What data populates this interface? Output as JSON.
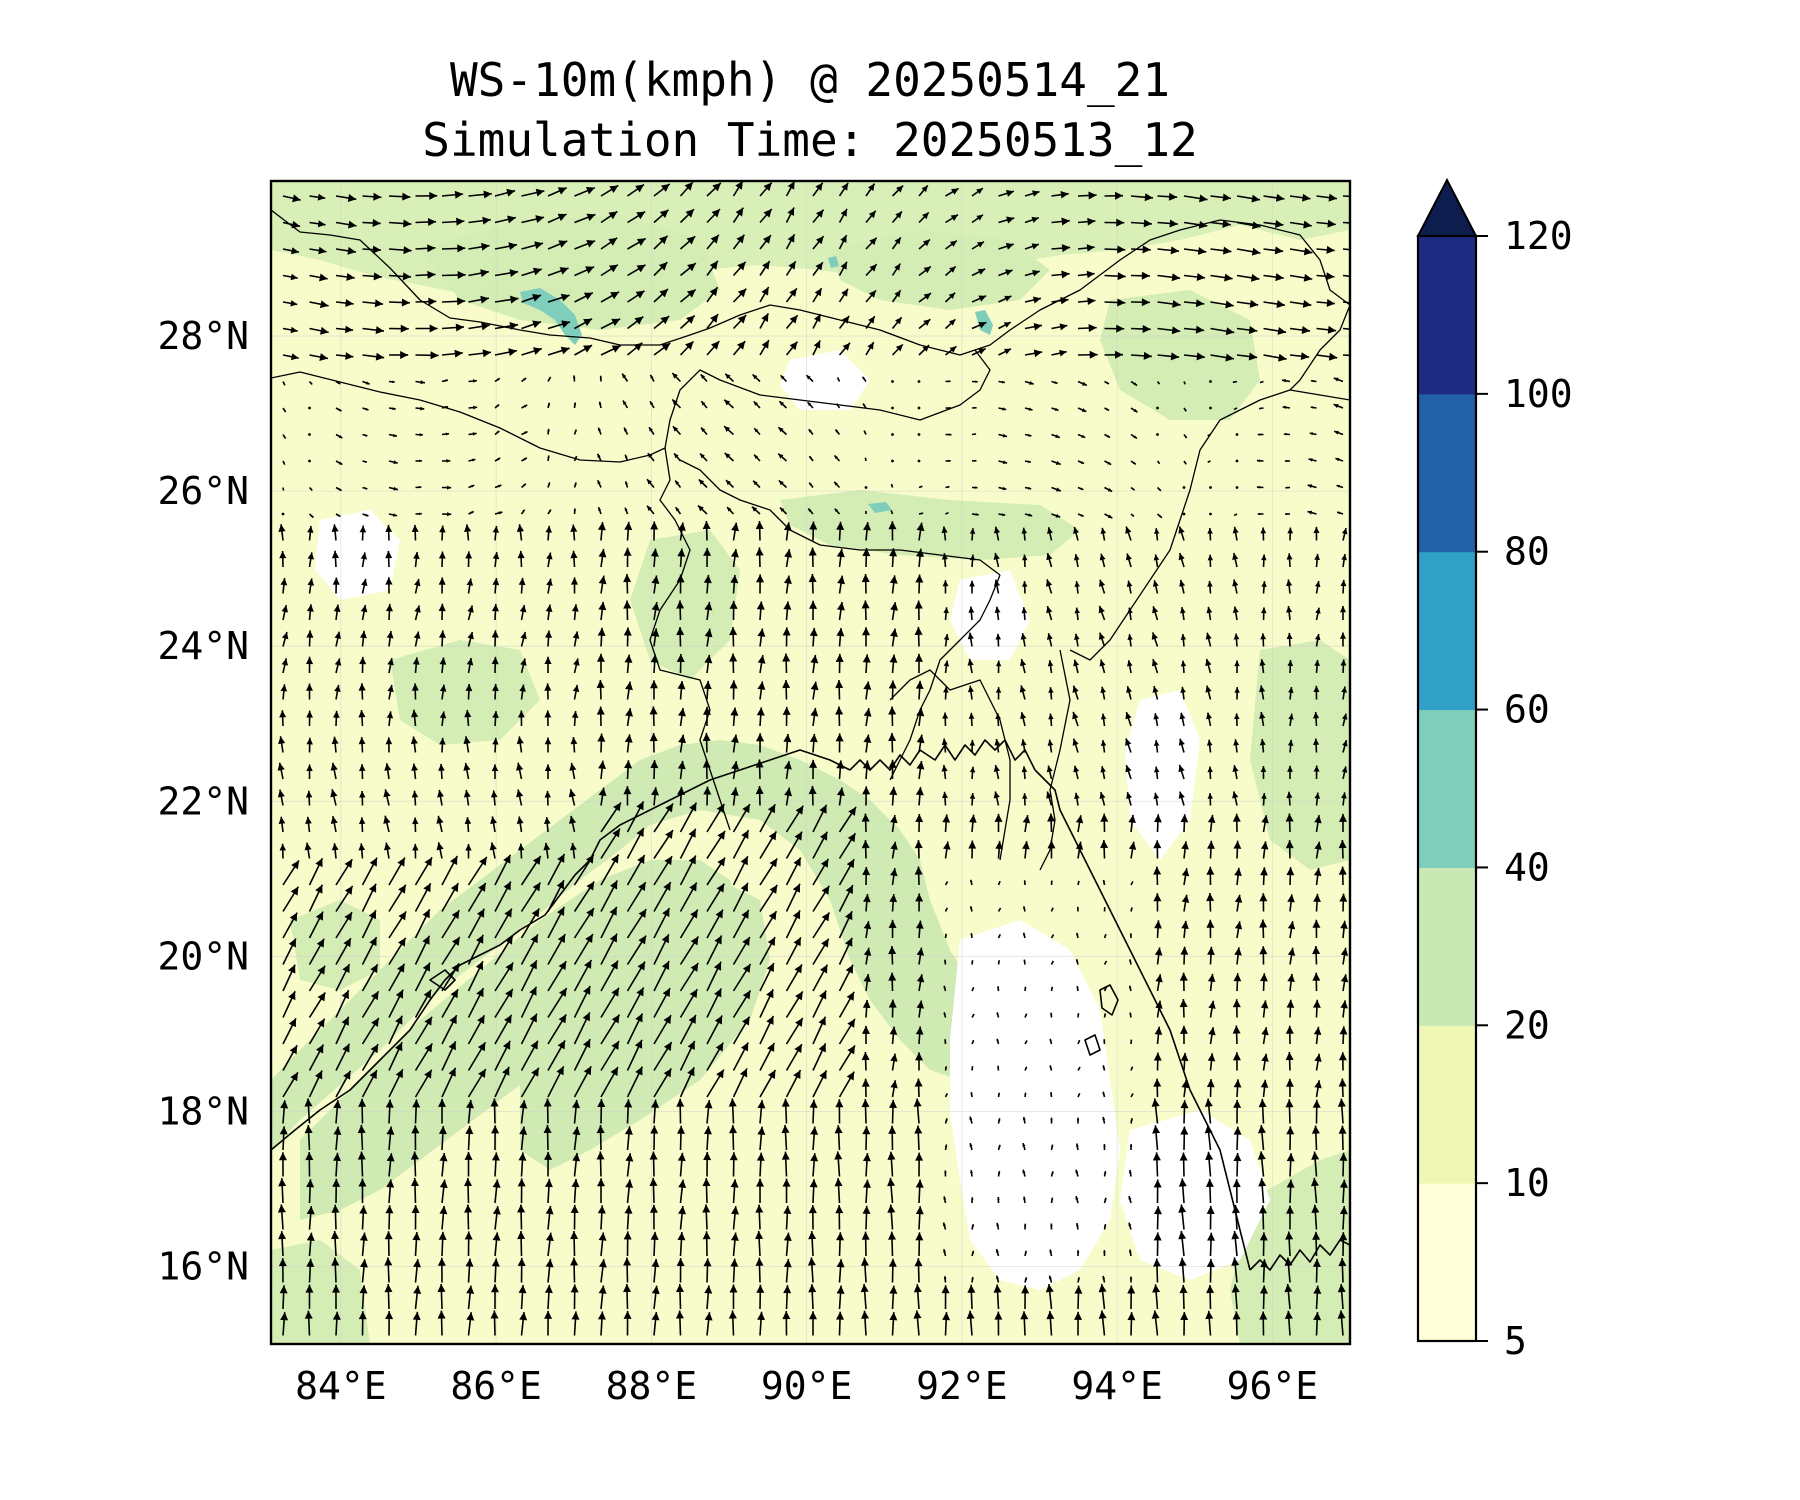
{
  "title": {
    "line1": "WS-10m(kmph) @ 20250514_21",
    "line2": "Simulation Time: 20250513_12"
  },
  "map": {
    "lon_range": [
      83.1,
      97.0
    ],
    "lat_range": [
      15.0,
      30.0
    ],
    "x_ticks": [
      {
        "lon": 84,
        "label": "84°E"
      },
      {
        "lon": 86,
        "label": "86°E"
      },
      {
        "lon": 88,
        "label": "88°E"
      },
      {
        "lon": 90,
        "label": "90°E"
      },
      {
        "lon": 92,
        "label": "92°E"
      },
      {
        "lon": 94,
        "label": "94°E"
      },
      {
        "lon": 96,
        "label": "96°E"
      }
    ],
    "y_ticks": [
      {
        "lat": 16,
        "label": "16°N"
      },
      {
        "lat": 18,
        "label": "18°N"
      },
      {
        "lat": 20,
        "label": "20°N"
      },
      {
        "lat": 22,
        "label": "22°N"
      },
      {
        "lat": 24,
        "label": "24°N"
      },
      {
        "lat": 26,
        "label": "26°N"
      },
      {
        "lat": 28,
        "label": "28°N"
      }
    ]
  },
  "colorbar": {
    "levels": [
      {
        "value": 5,
        "label": "5"
      },
      {
        "value": 10,
        "label": "10"
      },
      {
        "value": 20,
        "label": "20"
      },
      {
        "value": 40,
        "label": "40"
      },
      {
        "value": 60,
        "label": "60"
      },
      {
        "value": 80,
        "label": "80"
      },
      {
        "value": 100,
        "label": "100"
      },
      {
        "value": 120,
        "label": "120"
      }
    ],
    "colors": [
      "#ffffd9",
      "#eef8b4",
      "#c8e9b4",
      "#7fcdbb",
      "#2fa0c6",
      "#2260a8",
      "#1d2c82"
    ],
    "extend_color": "#0d1d4e",
    "extend": "max"
  }
}
